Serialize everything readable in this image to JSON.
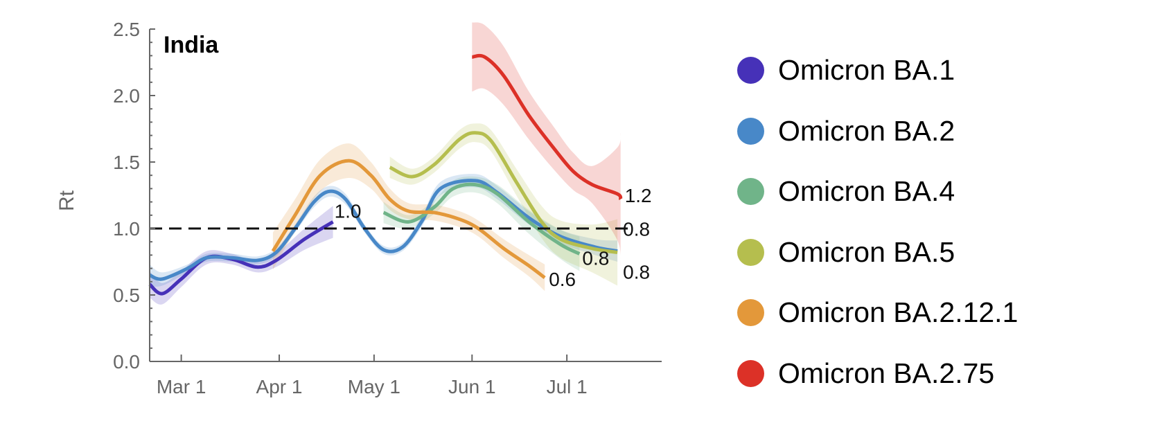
{
  "chart_data": {
    "type": "line",
    "title": "India",
    "xlabel": "",
    "ylabel": "Rt",
    "x_unit": "days since Mar 1",
    "xlim": [
      -10,
      152
    ],
    "ylim": [
      0,
      2.5
    ],
    "yticks": [
      "0.0",
      "0.5",
      "1.0",
      "1.5",
      "2.0",
      "2.5"
    ],
    "ytick_values": [
      0,
      0.5,
      1.0,
      1.5,
      2.0,
      2.5
    ],
    "xticks": [
      {
        "label": "Mar 1",
        "day": 0
      },
      {
        "label": "Apr 1",
        "day": 31
      },
      {
        "label": "May 1",
        "day": 61
      },
      {
        "label": "Jun 1",
        "day": 92
      },
      {
        "label": "Jul 1",
        "day": 122
      }
    ],
    "reference_line": 1.0,
    "legend_position": "right",
    "series": [
      {
        "name": "Omicron BA.1",
        "color": "#4631B8",
        "end_label": "1.0",
        "x": [
          -10,
          -6,
          0,
          8,
          16,
          24,
          30,
          39,
          48
        ],
        "y": [
          0.58,
          0.51,
          0.62,
          0.78,
          0.77,
          0.71,
          0.76,
          0.92,
          1.05
        ],
        "ci": [
          0.1,
          0.08,
          0.06,
          0.05,
          0.04,
          0.04,
          0.05,
          0.08,
          0.12
        ]
      },
      {
        "name": "Omicron BA.2",
        "color": "#4888C8",
        "end_label": "0.8",
        "x": [
          -10,
          -6,
          2,
          8,
          16,
          24,
          30,
          36,
          42,
          47,
          52,
          58,
          64,
          70,
          76,
          82,
          93,
          100,
          110,
          120,
          131,
          138
        ],
        "y": [
          0.65,
          0.62,
          0.7,
          0.78,
          0.78,
          0.76,
          0.82,
          1.0,
          1.2,
          1.28,
          1.22,
          1.0,
          0.84,
          0.86,
          1.05,
          1.3,
          1.36,
          1.27,
          1.08,
          0.94,
          0.86,
          0.83
        ],
        "ci": [
          0.08,
          0.05,
          0.03,
          0.03,
          0.03,
          0.03,
          0.03,
          0.03,
          0.04,
          0.04,
          0.04,
          0.03,
          0.03,
          0.03,
          0.04,
          0.05,
          0.05,
          0.05,
          0.05,
          0.05,
          0.06,
          0.08
        ]
      },
      {
        "name": "Omicron BA.4",
        "color": "#70B489",
        "end_label": "0.8",
        "x": [
          64,
          72,
          80,
          86,
          93,
          100,
          110,
          120,
          126
        ],
        "y": [
          1.12,
          1.05,
          1.16,
          1.3,
          1.33,
          1.26,
          1.05,
          0.88,
          0.81
        ],
        "ci": [
          0.08,
          0.05,
          0.05,
          0.06,
          0.06,
          0.07,
          0.09,
          0.11,
          0.13
        ]
      },
      {
        "name": "Omicron BA.5",
        "color": "#B5BE4E",
        "end_label": "0.8",
        "x": [
          66,
          73,
          80,
          88,
          93,
          98,
          106,
          114,
          120,
          130,
          138
        ],
        "y": [
          1.46,
          1.39,
          1.48,
          1.67,
          1.72,
          1.66,
          1.35,
          1.05,
          0.92,
          0.85,
          0.82
        ],
        "ci": [
          0.08,
          0.06,
          0.06,
          0.07,
          0.07,
          0.08,
          0.1,
          0.12,
          0.14,
          0.18,
          0.25
        ]
      },
      {
        "name": "Omicron BA.2.12.1",
        "color": "#E3983A",
        "end_label": "0.6",
        "x": [
          29,
          36,
          44,
          53,
          60,
          66,
          72,
          80,
          88,
          94,
          102,
          110,
          115
        ],
        "y": [
          0.83,
          1.1,
          1.4,
          1.51,
          1.4,
          1.22,
          1.13,
          1.12,
          1.07,
          1.0,
          0.85,
          0.72,
          0.63
        ],
        "ci": [
          0.14,
          0.12,
          0.12,
          0.13,
          0.1,
          0.08,
          0.06,
          0.06,
          0.06,
          0.06,
          0.07,
          0.08,
          0.1
        ]
      },
      {
        "name": "Omicron BA.2.75",
        "color": "#DC3127",
        "end_label": "1.2",
        "x": [
          92,
          96,
          102,
          110,
          118,
          124,
          130,
          138,
          139
        ],
        "y": [
          2.29,
          2.29,
          2.15,
          1.85,
          1.6,
          1.43,
          1.33,
          1.26,
          1.22
        ],
        "ci": [
          0.26,
          0.24,
          0.22,
          0.18,
          0.16,
          0.14,
          0.14,
          0.35,
          0.5
        ]
      }
    ]
  }
}
